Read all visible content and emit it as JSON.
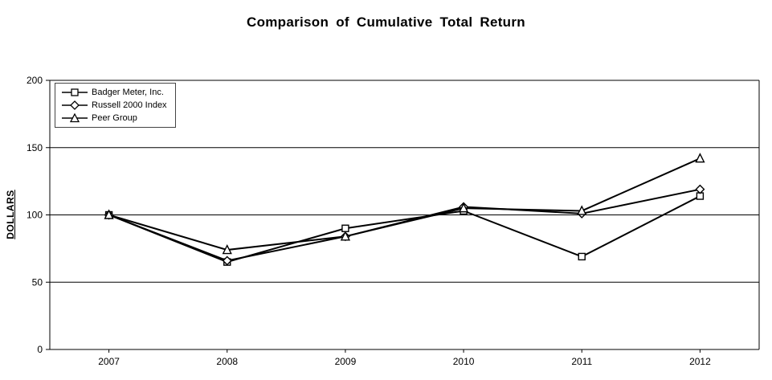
{
  "title": "Comparison of Cumulative Total Return",
  "chart_data": {
    "type": "line",
    "x": [
      "2007",
      "2008",
      "2009",
      "2010",
      "2011",
      "2012"
    ],
    "series": [
      {
        "name": "Badger Meter, Inc.",
        "marker": "square",
        "values": [
          100,
          65,
          90,
          103,
          69,
          114
        ]
      },
      {
        "name": "Russell 2000 Index",
        "marker": "diamond",
        "values": [
          100,
          66,
          84,
          106,
          101,
          119
        ]
      },
      {
        "name": "Peer Group",
        "marker": "triangle",
        "values": [
          100,
          74,
          84,
          105,
          103,
          142
        ]
      }
    ],
    "xlabel": "",
    "ylabel": "DOLLARS",
    "ylim": [
      0,
      200
    ],
    "yticks": [
      0,
      50,
      100,
      150,
      200
    ],
    "grid": true,
    "legend_position": "top-left",
    "line_color": "#000000",
    "marker_fill": "#ffffff"
  }
}
